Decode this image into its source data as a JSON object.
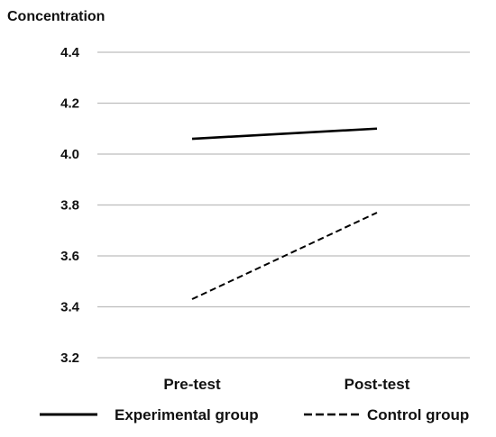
{
  "chart_data": {
    "type": "line",
    "title": "",
    "xlabel": "",
    "ylabel": "Concentration",
    "categories": [
      "Pre-test",
      "Post-test"
    ],
    "ylim": [
      3.2,
      4.4
    ],
    "yticks": [
      "3.2",
      "3.4",
      "3.6",
      "3.8",
      "4.0",
      "4.2",
      "4.4"
    ],
    "grid": true,
    "legend_position": "bottom",
    "series": [
      {
        "name": "Experimental group",
        "values": [
          4.06,
          4.1
        ],
        "style": "solid",
        "color": "#000000"
      },
      {
        "name": "Control group",
        "values": [
          3.43,
          3.77
        ],
        "style": "dashed",
        "color": "#000000"
      }
    ]
  }
}
